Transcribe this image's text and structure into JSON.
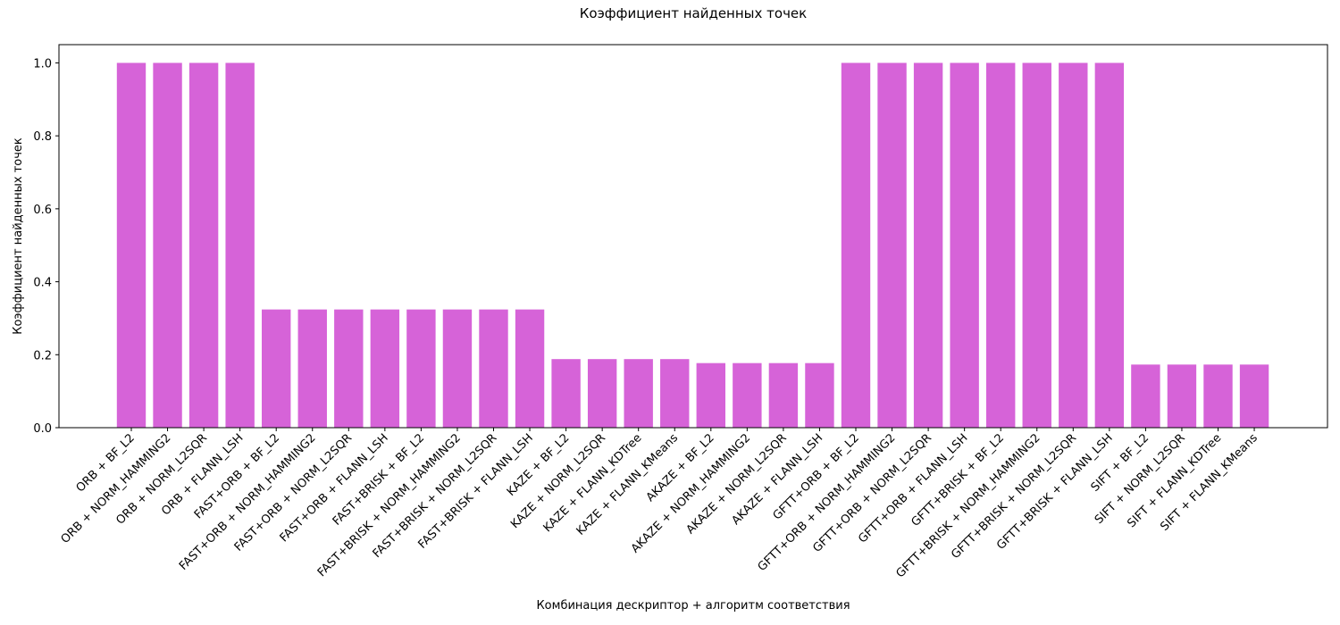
{
  "chart_data": {
    "type": "bar",
    "title": "Коэффициент найденных точек",
    "xlabel": "Комбинация дескриптор + алгоритм соответствия",
    "ylabel": "Коэффициент найденных точек",
    "ylim": [
      0,
      1.05
    ],
    "yticks": [
      "0.0",
      "0.2",
      "0.4",
      "0.6",
      "0.8",
      "1.0"
    ],
    "grid": false,
    "bar_color": "#d663d8",
    "categories": [
      "ORB + BF_L2",
      "ORB + NORM_HAMMING2",
      "ORB + NORM_L2SQR",
      "ORB + FLANN_LSH",
      "FAST+ORB + BF_L2",
      "FAST+ORB + NORM_HAMMING2",
      "FAST+ORB + NORM_L2SQR",
      "FAST+ORB + FLANN_LSH",
      "FAST+BRISK + BF_L2",
      "FAST+BRISK + NORM_HAMMING2",
      "FAST+BRISK + NORM_L2SQR",
      "FAST+BRISK + FLANN_LSH",
      "KAZE + BF_L2",
      "KAZE + NORM_L2SQR",
      "KAZE + FLANN_KDTree",
      "KAZE + FLANN_KMeans",
      "AKAZE + BF_L2",
      "AKAZE + NORM_HAMMING2",
      "AKAZE + NORM_L2SQR",
      "AKAZE + FLANN_LSH",
      "GFTT+ORB + BF_L2",
      "GFTT+ORB + NORM_HAMMING2",
      "GFTT+ORB + NORM_L2SQR",
      "GFTT+ORB + FLANN_LSH",
      "GFTT+BRISK + BF_L2",
      "GFTT+BRISK + NORM_HAMMING2",
      "GFTT+BRISK + NORM_L2SQR",
      "GFTT+BRISK + FLANN_LSH",
      "SIFT + BF_L2",
      "SIFT + NORM_L2SQR",
      "SIFT + FLANN_KDTree",
      "SIFT + FLANN_KMeans"
    ],
    "values": [
      1.0,
      1.0,
      1.0,
      1.0,
      0.324,
      0.324,
      0.324,
      0.324,
      0.324,
      0.324,
      0.324,
      0.324,
      0.188,
      0.188,
      0.188,
      0.188,
      0.177,
      0.177,
      0.177,
      0.177,
      1.0,
      1.0,
      1.0,
      1.0,
      1.0,
      1.0,
      1.0,
      1.0,
      0.173,
      0.173,
      0.173,
      0.173
    ]
  }
}
